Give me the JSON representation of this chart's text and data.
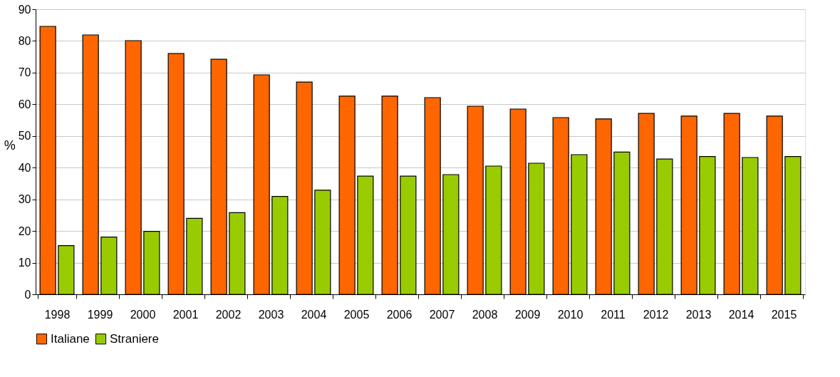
{
  "chart_data": {
    "type": "bar",
    "ylabel": "%",
    "categories": [
      "1998",
      "1999",
      "2000",
      "2001",
      "2002",
      "2003",
      "2004",
      "2005",
      "2006",
      "2007",
      "2008",
      "2009",
      "2010",
      "2011",
      "2012",
      "2013",
      "2014",
      "2015"
    ],
    "series": [
      {
        "name": "Italiane",
        "color": "#ff6600",
        "values": [
          84.6,
          81.9,
          80.1,
          76.0,
          74.2,
          69.3,
          67.0,
          62.6,
          62.6,
          62.1,
          59.4,
          58.5,
          55.8,
          55.4,
          57.1,
          56.3,
          57.1,
          56.3
        ]
      },
      {
        "name": "Straniere",
        "color": "#99cc00",
        "values": [
          15.4,
          18.1,
          19.9,
          24.0,
          25.8,
          30.9,
          32.9,
          37.3,
          37.3,
          37.8,
          40.5,
          41.4,
          44.1,
          44.9,
          42.7,
          43.5,
          43.2,
          43.5
        ]
      }
    ],
    "ylim": [
      0,
      90
    ],
    "yticks": [
      0,
      10,
      20,
      30,
      40,
      50,
      60,
      70,
      80,
      90
    ],
    "grid": "y",
    "legend": "bottom"
  }
}
